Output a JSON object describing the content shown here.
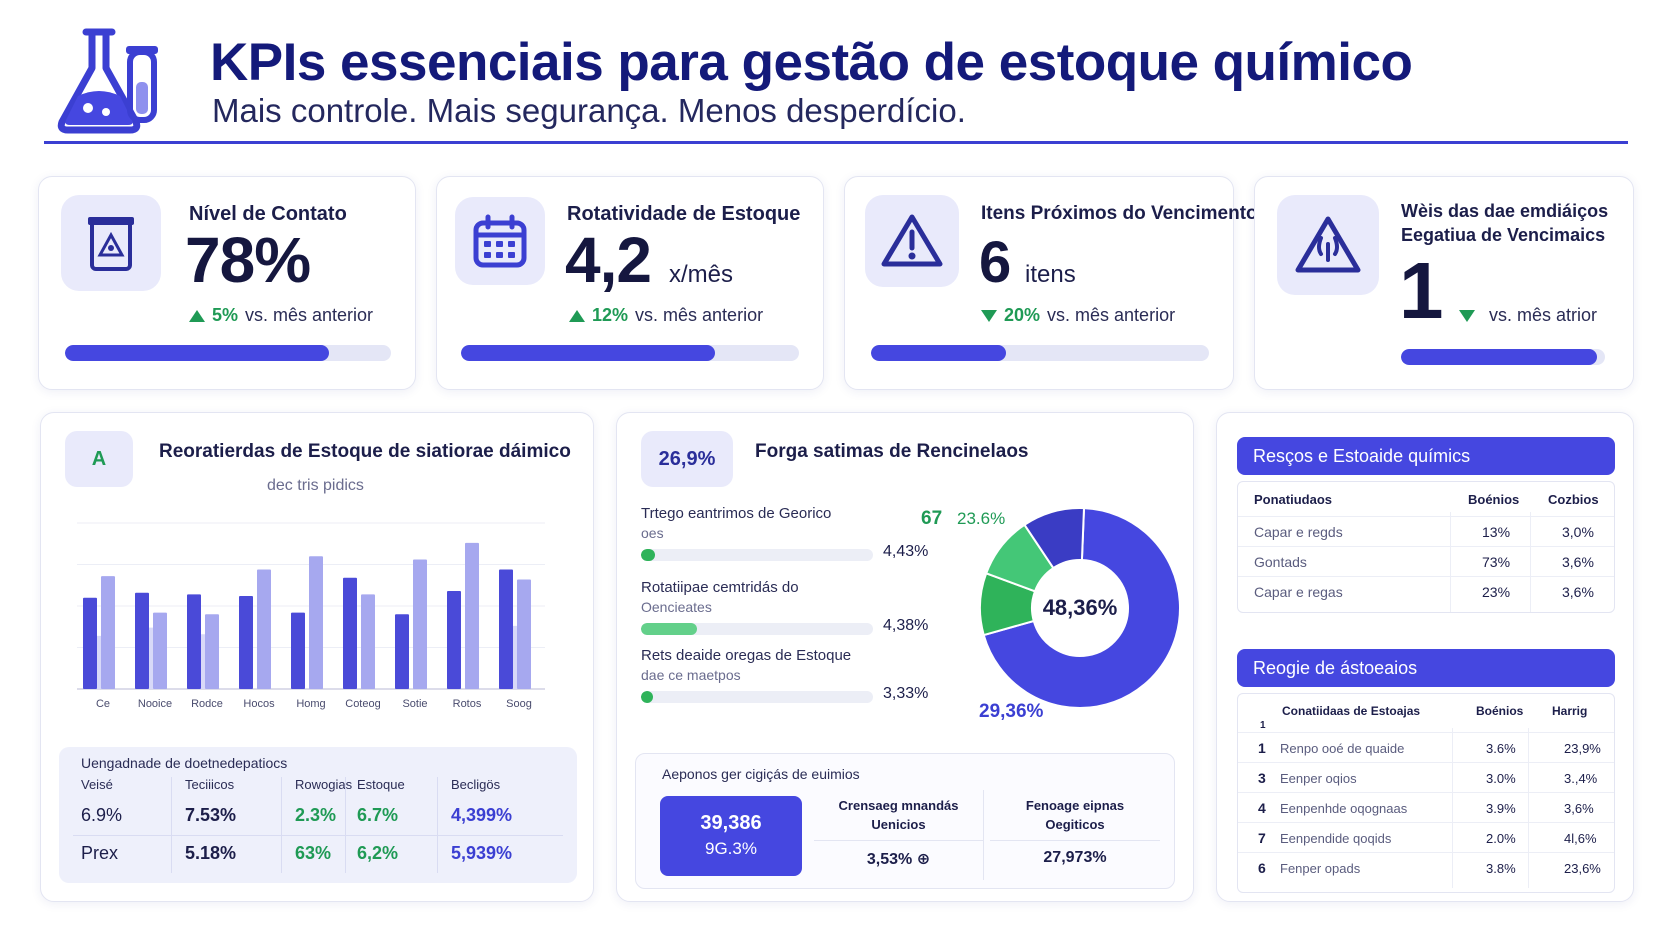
{
  "header": {
    "title": "KPIs essenciais para gestão de estoque químico",
    "subtitle": "Mais controle. Mais segurança. Menos desperdício.",
    "logo_icon": "flask-icon"
  },
  "kpis": [
    {
      "label": "Nível de Contato",
      "value": "78%",
      "unit": "",
      "trend_dir": "up",
      "trend_pct": "5%",
      "trend_text": "vs. mês anterior",
      "progress": 0.81,
      "icon": "hazard-container-icon"
    },
    {
      "label": "Rotatividade de Estoque",
      "value": "4,2",
      "unit": "x/mês",
      "trend_dir": "up",
      "trend_pct": "12%",
      "trend_text": "vs. mês anterior",
      "progress": 0.75,
      "icon": "calendar-icon"
    },
    {
      "label": "Itens Próximos do Vencimento",
      "value": "6",
      "unit": "itens",
      "trend_dir": "down",
      "trend_pct": "20%",
      "trend_text": "vs. mês anterior",
      "progress": 0.4,
      "icon": "warning-icon"
    },
    {
      "label_line1": "Wèis das dae emdiáiços",
      "label_line2": "Eegatiua de Vencimaics",
      "value": "1",
      "unit": "",
      "trend_dir": "down",
      "trend_pct": "",
      "trend_text": "vs. mês atrior",
      "progress": 0.96,
      "icon": "hazard-warning-icon"
    }
  ],
  "bar_panel": {
    "badge": "A",
    "title": "Reoratierdas de Estoque de siatiorae dáimico",
    "subtitle": "dec tris pidics",
    "colors": {
      "dark": "#4a4ad8",
      "light": "#a6a8ef"
    },
    "table": {
      "caption": "Uengadnade de doetnedepatiocs",
      "headers": [
        "Veisé",
        "Teciiicos",
        "Rowogias",
        "Estoque",
        "Becligös"
      ],
      "rows": [
        [
          "6.9%",
          "7.53%",
          "2.3%",
          "6.7%",
          "4,399%"
        ],
        [
          "Prex",
          "5.18%",
          "63%",
          "6,2%",
          "5,939%"
        ]
      ]
    }
  },
  "chart_data": {
    "type": "bar",
    "categories": [
      "Ce",
      "Nooice",
      "Rodce",
      "Hocos",
      "Homg",
      "Coteog",
      "Sotie",
      "Rotos",
      "Soog"
    ],
    "series": [
      {
        "values": [
          55,
          58,
          57,
          56,
          46,
          67,
          45,
          59,
          72
        ]
      },
      {
        "values": [
          68,
          46,
          45,
          72,
          80,
          57,
          78,
          88,
          66
        ]
      },
      {
        "values": [
          32,
          37,
          33,
          0,
          0,
          0,
          0,
          0,
          38
        ]
      }
    ],
    "ylim": [
      0,
      100
    ]
  },
  "donut_panel": {
    "badge": "26,9%",
    "title": "Forga satimas de Rencinelaos",
    "items": [
      {
        "line1": "Trtego eantrimos de Georico",
        "line2": "oes",
        "value": "4,43%",
        "progress": 0.06,
        "color": "#2fb35a"
      },
      {
        "line1": "Rotatiipae cemtridás do",
        "line2": "Oencieates",
        "value": "4,38%",
        "progress": 0.24,
        "color": "#63d08a"
      },
      {
        "line1": "Rets deaide oregas de Estoque",
        "line2": "dae ce maetpos",
        "value": "3,33%",
        "progress": 0.05,
        "color": "#2fb35a"
      }
    ],
    "label_top_a": "67",
    "label_top_b": "23.6%",
    "center": "48,36%",
    "label_bottom": "29,36%",
    "slices": [
      {
        "value": 70,
        "color": "#4547e0"
      },
      {
        "value": 10,
        "color": "#2fb35a"
      },
      {
        "value": 10,
        "color": "#44c777"
      },
      {
        "value": 10,
        "color": "#3a3cc4"
      }
    ],
    "footer": {
      "caption": "Aeponos ger cigiçás de euimios",
      "highlight_line1": "39,386",
      "highlight_line2": "9G.3%",
      "col1_line1": "Crensaeg mnandás",
      "col1_line2": "Uenicios",
      "col1_value": "3,53%",
      "col2_line1": "Fenoage eipnas",
      "col2_line2": "Oegiticos",
      "col2_value": "27,973%"
    }
  },
  "right_top": {
    "title": "Resços e Estoaide químics",
    "headers": [
      "Ponatiudaos",
      "Boénios",
      "Cozbios"
    ],
    "rows": [
      [
        "Capar e regds",
        "13%",
        "3,0%"
      ],
      [
        "Gontads",
        "73%",
        "3,6%"
      ],
      [
        "Capar e regas",
        "23%",
        "3,6%"
      ]
    ]
  },
  "right_bottom": {
    "title": "Reogie de ástoeaios",
    "headers": [
      "Conatiidaas de Estoajas",
      "Boénios",
      "Harrig"
    ],
    "first_num": "1",
    "rows": [
      [
        "1",
        "Renpo ooé de quaide",
        "3.6%",
        "23,9%"
      ],
      [
        "3",
        "Eenper oqios",
        "3.0%",
        "3.,4%"
      ],
      [
        "4",
        "Eenpenhde oqognaas",
        "3.9%",
        "3,6%"
      ],
      [
        "7",
        "Eenpendide qoqids",
        "2.0%",
        "4l,6%"
      ],
      [
        "6",
        "Fenper opads",
        "3.8%",
        "23,6%"
      ]
    ]
  }
}
